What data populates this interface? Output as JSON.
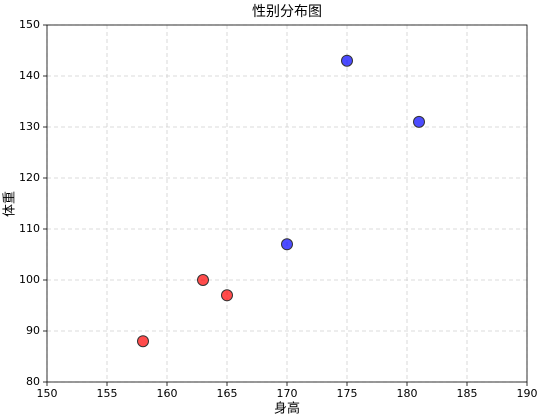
{
  "chart_data": {
    "type": "scatter",
    "title": "性别分布图",
    "x_label": "身高",
    "y_label": "体重",
    "series": [
      {
        "color": "#ff0000",
        "x": [
          158,
          163,
          165
        ],
        "values": [
          88,
          100,
          97
        ]
      },
      {
        "color": "#0000ff",
        "x": [
          170,
          175,
          181
        ],
        "values": [
          107,
          143,
          131
        ]
      }
    ],
    "xlim": [
      150,
      190
    ],
    "xticks": [
      150,
      155,
      160,
      165,
      170,
      175,
      180,
      185,
      190
    ],
    "ylim": [
      80,
      150
    ],
    "yticks": [
      80,
      90,
      100,
      110,
      120,
      130,
      140,
      150
    ],
    "grid": true
  }
}
